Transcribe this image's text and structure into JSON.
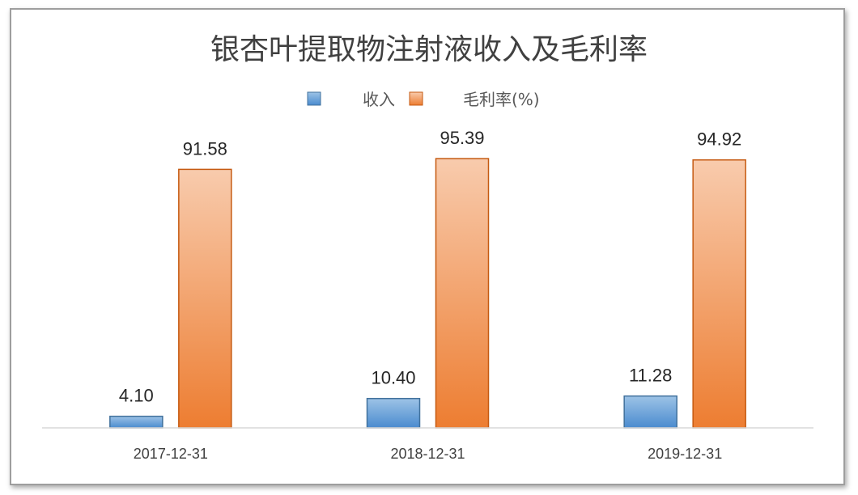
{
  "chart_data": {
    "type": "bar",
    "title": "银杏叶提取物注射液收入及毛利率",
    "categories": [
      "2017-12-31",
      "2018-12-31",
      "2019-12-31"
    ],
    "series": [
      {
        "name": "收入",
        "values": [
          4.1,
          10.4,
          11.28
        ],
        "labels": [
          "4.10",
          "10.40",
          "11.28"
        ],
        "color": "#5b9bd5"
      },
      {
        "name": "毛利率(%)",
        "values": [
          91.58,
          95.39,
          94.92
        ],
        "labels": [
          "91.58",
          "95.39",
          "94.92"
        ],
        "color": "#ed7d31"
      }
    ],
    "ylim": [
      0,
      100
    ],
    "grid": false,
    "legend": "top-center",
    "xlabel": "",
    "ylabel": ""
  }
}
